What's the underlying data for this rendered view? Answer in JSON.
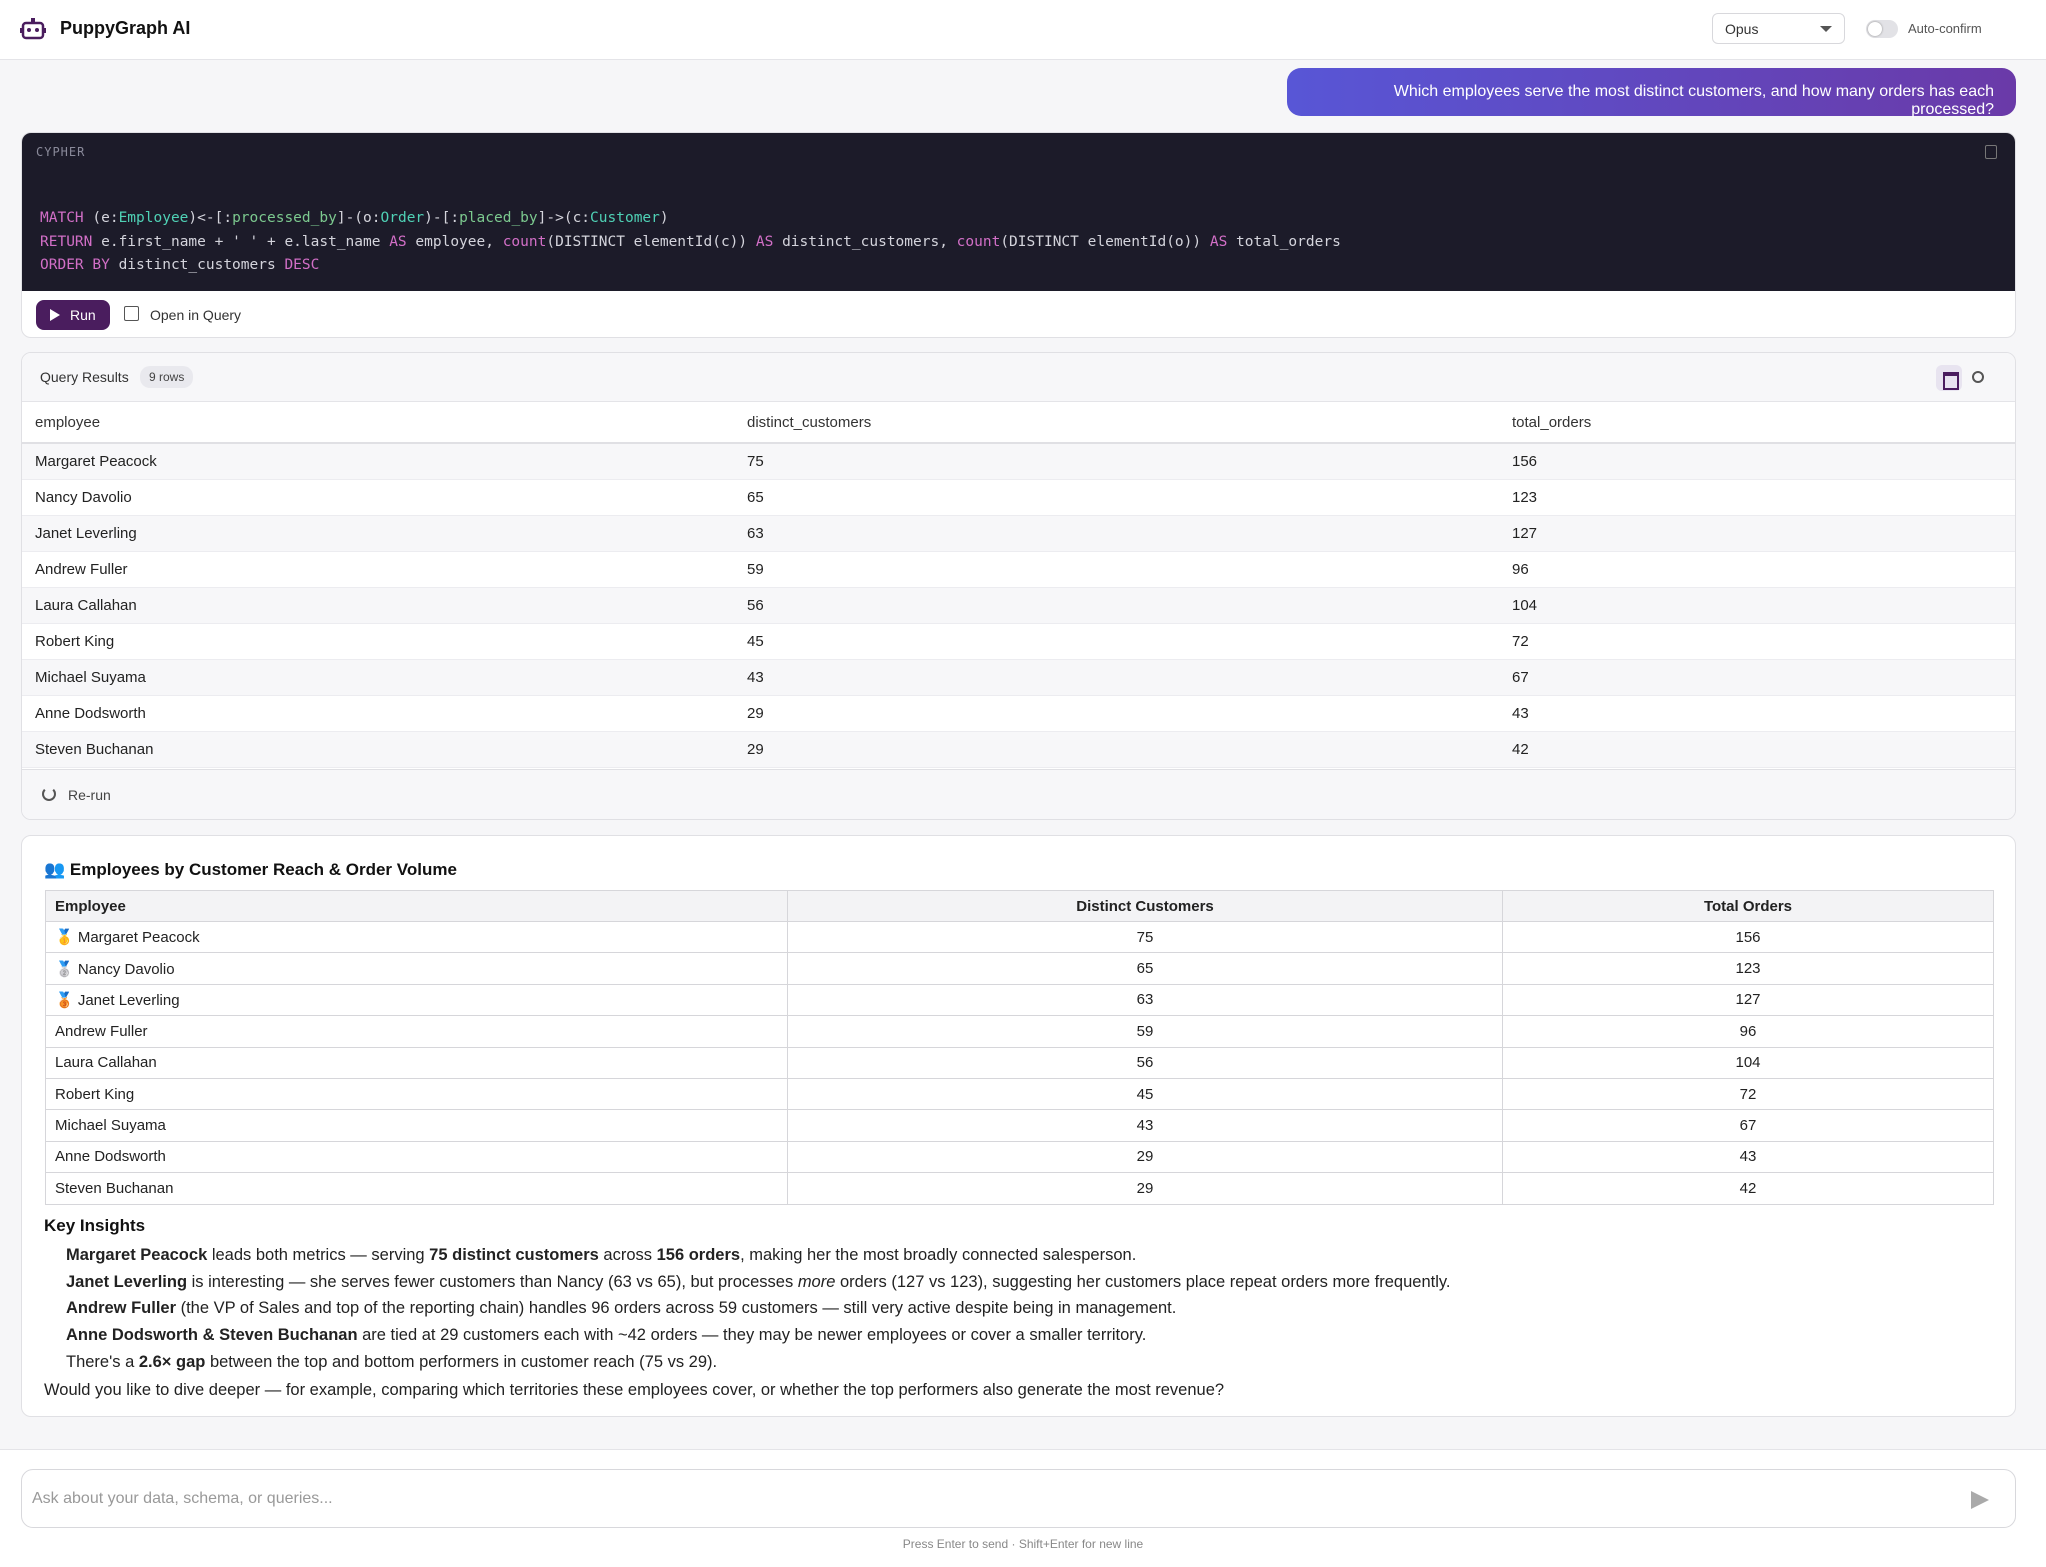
{
  "header": {
    "title": "PuppyGraph AI",
    "model": "Opus",
    "auto_confirm": "Auto-confirm"
  },
  "user_message": "Which employees serve the most distinct customers, and how many orders has each processed?",
  "cypher": {
    "label": "CYPHER",
    "lines": [
      [
        {
          "text": "MATCH",
          "color": "#d26fc7"
        },
        {
          "text": " (e:",
          "color": "#d4d4dc"
        },
        {
          "text": "Employee",
          "color": "#4fd1b5"
        },
        {
          "text": ")<-[:",
          "color": "#d4d4dc"
        },
        {
          "text": "processed_by",
          "color": "#7cc98f"
        },
        {
          "text": "]-(o:",
          "color": "#d4d4dc"
        },
        {
          "text": "Order",
          "color": "#4fd1b5"
        },
        {
          "text": ")-[:",
          "color": "#d4d4dc"
        },
        {
          "text": "placed_by",
          "color": "#7cc98f"
        },
        {
          "text": "]->(c:",
          "color": "#d4d4dc"
        },
        {
          "text": "Customer",
          "color": "#4fd1b5"
        },
        {
          "text": ")",
          "color": "#d4d4dc"
        }
      ],
      [
        {
          "text": "RETURN",
          "color": "#d26fc7"
        },
        {
          "text": " e.first_name + ' ' + e.last_name ",
          "color": "#d4d4dc"
        },
        {
          "text": "AS",
          "color": "#d26fc7"
        },
        {
          "text": " employee, ",
          "color": "#d4d4dc"
        },
        {
          "text": "count",
          "color": "#d26fc7"
        },
        {
          "text": "(DISTINCT elementId(c)) ",
          "color": "#d4d4dc"
        },
        {
          "text": "AS",
          "color": "#d26fc7"
        },
        {
          "text": " distinct_customers, ",
          "color": "#d4d4dc"
        },
        {
          "text": "count",
          "color": "#d26fc7"
        },
        {
          "text": "(DISTINCT elementId(o)) ",
          "color": "#d4d4dc"
        },
        {
          "text": "AS",
          "color": "#d26fc7"
        },
        {
          "text": " total_orders",
          "color": "#d4d4dc"
        }
      ],
      [
        {
          "text": "ORDER BY",
          "color": "#d26fc7"
        },
        {
          "text": " distinct_customers ",
          "color": "#d4d4dc"
        },
        {
          "text": "DESC",
          "color": "#d26fc7"
        }
      ]
    ],
    "run": "Run",
    "open_in_query": "Open in Query"
  },
  "results": {
    "title": "Query Results",
    "row_count": "9 rows",
    "columns": [
      "employee",
      "distinct_customers",
      "total_orders"
    ],
    "rows": [
      [
        "Margaret Peacock",
        75,
        156
      ],
      [
        "Nancy Davolio",
        65,
        123
      ],
      [
        "Janet Leverling",
        63,
        127
      ],
      [
        "Andrew Fuller",
        59,
        96
      ],
      [
        "Laura Callahan",
        56,
        104
      ],
      [
        "Robert King",
        45,
        72
      ],
      [
        "Michael Suyama",
        43,
        67
      ],
      [
        "Anne Dodsworth",
        29,
        43
      ],
      [
        "Steven Buchanan",
        29,
        42
      ]
    ],
    "rerun": "Re-run"
  },
  "report": {
    "title": "👥 Employees by Customer Reach & Order Volume",
    "columns": [
      "Employee",
      "Distinct Customers",
      "Total Orders"
    ],
    "rows": [
      [
        "🥇 Margaret Peacock",
        75,
        156
      ],
      [
        "🥈 Nancy Davolio",
        65,
        123
      ],
      [
        "🥉 Janet Leverling",
        63,
        127
      ],
      [
        "Andrew Fuller",
        59,
        96
      ],
      [
        "Laura Callahan",
        56,
        104
      ],
      [
        "Robert King",
        45,
        72
      ],
      [
        "Michael Suyama",
        43,
        67
      ],
      [
        "Anne Dodsworth",
        29,
        43
      ],
      [
        "Steven Buchanan",
        29,
        42
      ]
    ],
    "insights_title": "Key Insights",
    "insights": [
      [
        {
          "bold": "Margaret Peacock"
        },
        " leads both metrics — serving ",
        {
          "bold": "75 distinct customers"
        },
        " across ",
        {
          "bold": "156 orders"
        },
        ", making her the most broadly connected salesperson."
      ],
      [
        {
          "bold": "Janet Leverling"
        },
        " is interesting — she serves fewer customers than Nancy (63 vs 65), but processes ",
        {
          "italic": "more"
        },
        " orders (127 vs 123), suggesting her customers place repeat orders more frequently."
      ],
      [
        {
          "bold": "Andrew Fuller"
        },
        " (the VP of Sales and top of the reporting chain) handles 96 orders across 59 customers — still very active despite being in management."
      ],
      [
        {
          "bold": "Anne Dodsworth & Steven Buchanan"
        },
        " are tied at 29 customers each with ~42 orders — they may be newer employees or cover a smaller territory."
      ],
      [
        "There's a ",
        {
          "bold": "2.6× gap"
        },
        " between the top and bottom performers in customer reach (75 vs 29)."
      ]
    ],
    "closing": "Would you like to dive deeper — for example, comparing which territories these employees cover, or whether the top performers also generate the most revenue?"
  },
  "composer": {
    "placeholder": "Ask about your data, schema, or queries...",
    "hint": "Press Enter to send · Shift+Enter for new line"
  }
}
